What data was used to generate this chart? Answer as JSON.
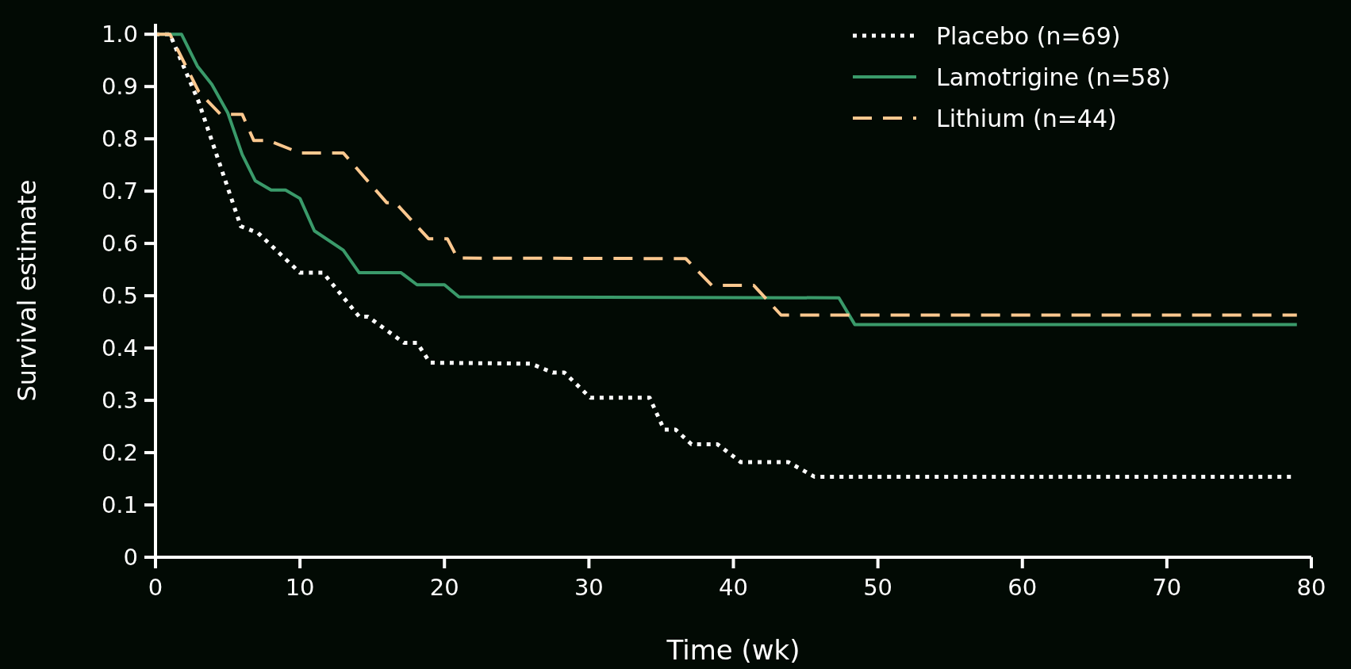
{
  "chart_data": {
    "type": "line",
    "xlabel": "Time (wk)",
    "ylabel": "Survival estimate",
    "xlim": [
      0,
      80
    ],
    "xticks": [
      0,
      10,
      20,
      30,
      40,
      50,
      60,
      70,
      80
    ],
    "ylim": [
      0,
      1.02
    ],
    "yticks": [
      {
        "value": 0,
        "label": "0"
      },
      0.1,
      0.2,
      0.3,
      0.4,
      0.5,
      0.6,
      0.7,
      0.8,
      0.9,
      {
        "value": 1,
        "label": "1.0"
      }
    ],
    "grid": false,
    "legend": "top right",
    "marker": "none",
    "series": [
      {
        "name": "Placebo (n=69)",
        "color": "#ffffff",
        "line_style": "dotted",
        "x": [
          0,
          1,
          3,
          5.9,
          7.1,
          10,
          11.6,
          14.1,
          14.7,
          17.2,
          18.1,
          19,
          26,
          27.5,
          28.3,
          30.1,
          34.2,
          35.2,
          36,
          37.1,
          38.9,
          40.5,
          43.8,
          45.6,
          78.6
        ],
        "values": [
          1,
          1,
          0.87,
          0.633,
          0.62,
          0.544,
          0.544,
          0.46,
          0.46,
          0.41,
          0.41,
          0.372,
          0.37,
          0.353,
          0.353,
          0.305,
          0.305,
          0.244,
          0.244,
          0.216,
          0.216,
          0.182,
          0.182,
          0.154,
          0.154
        ]
      },
      {
        "name": "Lamotrigine (n=58)",
        "color": "#3a9a6a",
        "line_style": "solid",
        "x": [
          0,
          1.8,
          2.9,
          3.9,
          5,
          6,
          6.9,
          8,
          9,
          10,
          11,
          13,
          14.1,
          17,
          18.1,
          20,
          21,
          47.3,
          48.4,
          79
        ],
        "values": [
          1,
          1,
          0.939,
          0.904,
          0.85,
          0.77,
          0.72,
          0.702,
          0.702,
          0.686,
          0.624,
          0.587,
          0.544,
          0.544,
          0.521,
          0.521,
          0.498,
          0.496,
          0.445,
          0.445
        ]
      },
      {
        "name": "Lithium (n=44)",
        "color": "#fcc88f",
        "line_style": "dashed",
        "x": [
          0,
          1,
          3,
          4.5,
          6,
          6.8,
          7.8,
          10,
          13,
          16,
          16.6,
          18.9,
          20.2,
          20.9,
          36.7,
          38.5,
          41.4,
          43.3,
          79
        ],
        "values": [
          1,
          1,
          0.89,
          0.847,
          0.847,
          0.797,
          0.797,
          0.773,
          0.773,
          0.678,
          0.678,
          0.609,
          0.609,
          0.572,
          0.571,
          0.52,
          0.52,
          0.463,
          0.463
        ]
      }
    ]
  }
}
